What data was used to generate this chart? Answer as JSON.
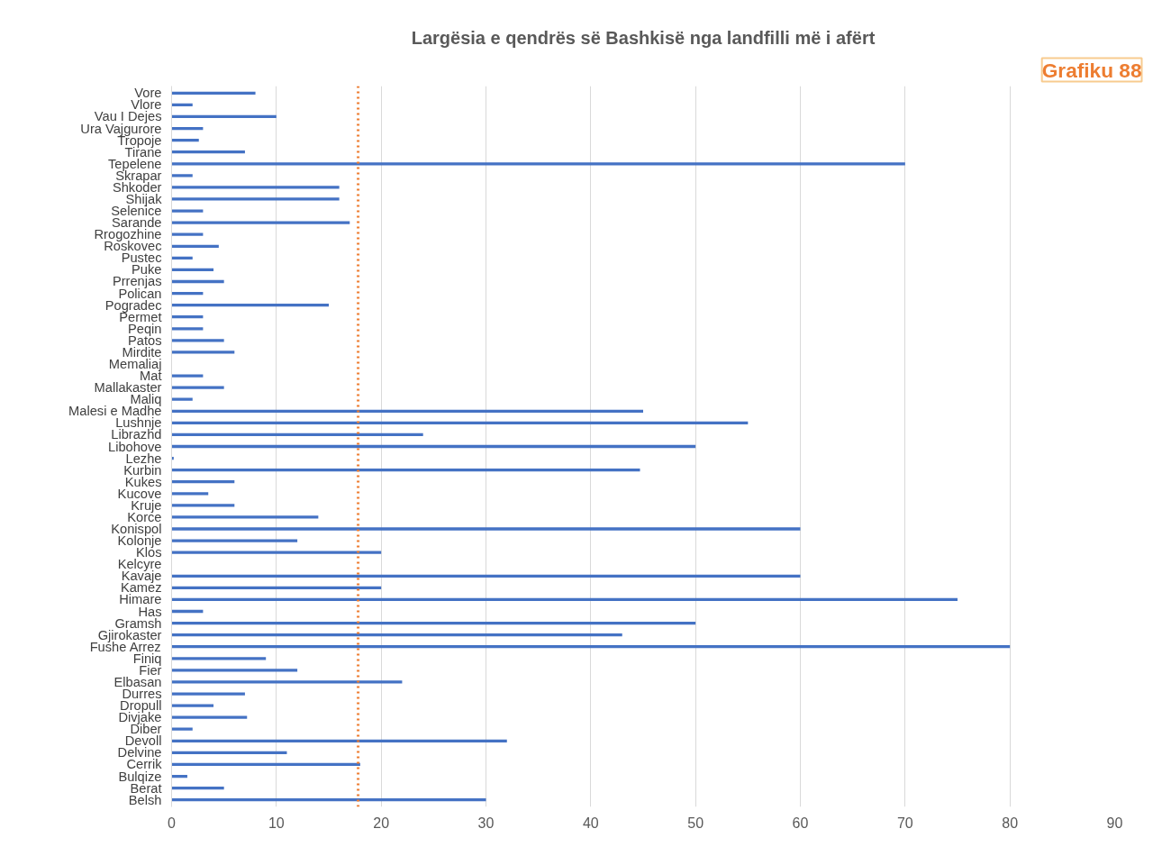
{
  "chart_data": {
    "type": "bar",
    "orientation": "horizontal",
    "title": "Largësia e qendrës së Bashkisë nga landfilli më i afërt",
    "categories": [
      "Vore",
      "Vlore",
      "Vau I Dejes",
      "Ura Vajgurore",
      "Tropoje",
      "Tirane",
      "Tepelene",
      "Skrapar",
      "Shkoder",
      "Shijak",
      "Selenice",
      "Sarande",
      "Rrogozhine",
      "Roskovec",
      "Pustec",
      "Puke",
      "Prrenjas",
      "Polican",
      "Pogradec",
      "Permet",
      "Peqin",
      "Patos",
      "Mirdite",
      "Memaliaj",
      "Mat",
      "Mallakaster",
      "Maliq",
      "Malesi e Madhe",
      "Lushnje",
      "Librazhd",
      "Libohove",
      "Lezhe",
      "Kurbin",
      "Kukes",
      "Kucove",
      "Kruje",
      "Korce",
      "Konispol",
      "Kolonje",
      "Klos",
      "Kelcyre",
      "Kavaje",
      "Kamez",
      "Himare",
      "Has",
      "Gramsh",
      "Gjirokaster",
      "Fushe Arrez",
      "Finiq",
      "Fier",
      "Elbasan",
      "Durres",
      "Dropull",
      "Divjake",
      "Diber",
      "Devoll",
      "Delvine",
      "Cerrik",
      "Bulqize",
      "Berat",
      "Belsh"
    ],
    "values": [
      8,
      2,
      10,
      3,
      2.6,
      7,
      70,
      2,
      16,
      16,
      3,
      17,
      3,
      4.5,
      2,
      4,
      5,
      3,
      15,
      3,
      3,
      5,
      6,
      null,
      3,
      5,
      2,
      45,
      55,
      24,
      50,
      0.2,
      44.7,
      6,
      3.5,
      6,
      14,
      60,
      12,
      20,
      null,
      60,
      20,
      75,
      3,
      50,
      43,
      80,
      9,
      12,
      22,
      7,
      4,
      7.2,
      2,
      32,
      11,
      18,
      1.5,
      5,
      30
    ],
    "color": "#4472c4",
    "xlim": [
      0,
      90
    ],
    "xticks": [
      0,
      10,
      20,
      30,
      40,
      50,
      60,
      70,
      80,
      90
    ],
    "grid": "x",
    "ref_lines": [
      {
        "axis": "x",
        "value": 17.8,
        "color": "#ed7d31",
        "line_style": "dotted"
      }
    ],
    "annotations": [
      "Grafiku 88"
    ]
  }
}
